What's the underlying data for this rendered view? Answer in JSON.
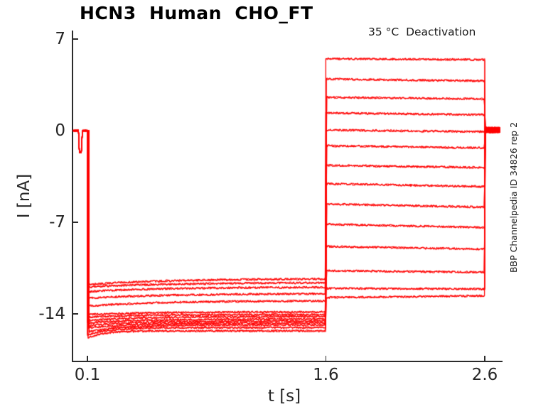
{
  "chart_data": {
    "type": "line",
    "title": "HCN3  Human  CHO_FT",
    "subtitle": "35 °C  Deactivation",
    "xlabel": "t [s]",
    "ylabel": "I [nA]",
    "side_annotation": "BBP Channelpedia ID 34826 rep 2",
    "trace_color": "#ff0000",
    "axis_color": "#2b2b2b",
    "grid": false,
    "legend": "none",
    "xlim": [
      0.006,
      2.71
    ],
    "ylim": [
      -17.7,
      7.65
    ],
    "units": {
      "x": "s",
      "y": "nA"
    },
    "x_ticks": [
      {
        "value": 0.1,
        "label": "0.1"
      },
      {
        "value": 1.6,
        "label": "1.6"
      },
      {
        "value": 2.6,
        "label": "2.6"
      }
    ],
    "y_ticks": [
      {
        "value": 7,
        "label": "7"
      },
      {
        "value": 0,
        "label": "0"
      },
      {
        "value": -7,
        "label": "-7"
      },
      {
        "value": -14,
        "label": "-14"
      }
    ],
    "protocol": {
      "baseline_level_nA": 0,
      "baseline_start_s": 0.0105,
      "stim_artifact": {
        "t_start_s": 0.044,
        "t_flat_start_s": 0.049,
        "t_flat_end_s": 0.063,
        "t_end_s": 0.068,
        "depth_nA": -1.65
      },
      "conditioning_step_s": 0.1,
      "test_step_s": 1.6,
      "return_step_s": 2.6,
      "trace_end_s": 2.697,
      "tail_level_nA": 0.05
    },
    "sweeps": [
      {
        "cond_start": -11.75,
        "cond_end": -11.3,
        "cond_tau": 0.55,
        "test_start": 5.5,
        "test_end": 5.42
      },
      {
        "cond_start": -11.95,
        "cond_end": -11.6,
        "cond_tau": 0.55,
        "test_start": 3.95,
        "test_end": 3.8
      },
      {
        "cond_start": -12.3,
        "cond_end": -11.95,
        "cond_tau": 0.5,
        "test_start": 2.55,
        "test_end": 2.42
      },
      {
        "cond_start": -12.8,
        "cond_end": -12.45,
        "cond_tau": 0.5,
        "test_start": 1.35,
        "test_end": 1.22
      },
      {
        "cond_start": -13.4,
        "cond_end": -13.0,
        "cond_tau": 0.45,
        "test_start": 0.05,
        "test_end": -0.08
      },
      {
        "cond_start": -14.05,
        "cond_end": -13.85,
        "cond_tau": 0.4,
        "test_start": -1.15,
        "test_end": -1.32
      },
      {
        "cond_start": -14.25,
        "cond_end": -14.05,
        "cond_tau": 0.35,
        "test_start": -2.65,
        "test_end": -2.82
      },
      {
        "cond_start": -14.5,
        "cond_end": -14.2,
        "cond_tau": 0.35,
        "test_start": -4.05,
        "test_end": -4.28
      },
      {
        "cond_start": -14.7,
        "cond_end": -14.4,
        "cond_tau": 0.3,
        "test_start": -5.6,
        "test_end": -5.85
      },
      {
        "cond_start": -14.9,
        "cond_end": -14.55,
        "cond_tau": 0.3,
        "test_start": -7.15,
        "test_end": -7.4
      },
      {
        "cond_start": -15.1,
        "cond_end": -14.7,
        "cond_tau": 0.25,
        "test_start": -8.85,
        "test_end": -9.05
      },
      {
        "cond_start": -15.4,
        "cond_end": -14.85,
        "cond_tau": 0.2,
        "test_start": -10.7,
        "test_end": -10.82
      },
      {
        "cond_start": -15.6,
        "cond_end": -15.05,
        "cond_tau": 0.14,
        "test_start": -12.05,
        "test_end": -12.1
      },
      {
        "cond_start": -15.85,
        "cond_end": -15.3,
        "cond_tau": 0.1,
        "test_start": -12.75,
        "test_end": -12.62
      }
    ]
  }
}
